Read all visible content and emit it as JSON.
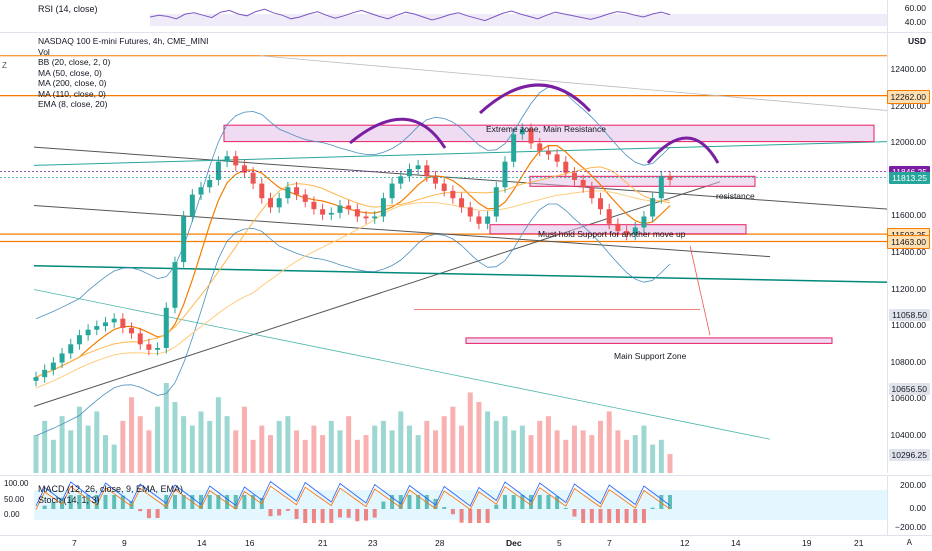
{
  "rsi": {
    "label": "RSI (14, close)",
    "levels": [
      "60.00",
      "40.00"
    ],
    "values": [
      55,
      58,
      56,
      52,
      60,
      62,
      58,
      54,
      63,
      66,
      60,
      57,
      64,
      68,
      62,
      58,
      52,
      55,
      60,
      64,
      58,
      53,
      57,
      62,
      66,
      61,
      56,
      52,
      58,
      63,
      60,
      55,
      50,
      54,
      59,
      62,
      57,
      53,
      49,
      55,
      61,
      65,
      60,
      56,
      52,
      58,
      63,
      60,
      57,
      54,
      51,
      55,
      60,
      64,
      62,
      58,
      55,
      60,
      63,
      59
    ]
  },
  "main": {
    "title": "NASDAQ 100 E-mini Futures, 4h, CME_MINI",
    "indicators": [
      "Vol",
      "BB (20, close, 2, 0)",
      "MA (50, close, 0)",
      "MA (200, close, 0)",
      "MA (110, close, 0)",
      "EMA (8, close, 20)"
    ],
    "currency": "USD",
    "price_ticks": [
      "12400.00",
      "12200.00",
      "12000.00",
      "11600.00",
      "11400.00",
      "11200.00",
      "11000.00",
      "10800.00",
      "10600.00",
      "10400.00"
    ],
    "badges": [
      {
        "text": "12262.00",
        "price": 12262,
        "color": "#ffe0b2",
        "border": "#f57c00"
      },
      {
        "text": "11846.25",
        "price": 11846.25,
        "color": "#7b1fa2",
        "text_color": "#ffffff"
      },
      {
        "text": "11813.25",
        "price": 11813.25,
        "color": "#26a69a",
        "text_color": "#ffffff"
      },
      {
        "text": "11503.25",
        "price": 11503.25,
        "color": "#ffe0b2",
        "border": "#f57c00"
      },
      {
        "text": "11463.00",
        "price": 11463,
        "color": "#ffe0b2",
        "border": "#f57c00"
      },
      {
        "text": "11058.50",
        "price": 11058.5,
        "color": "#e0e3eb"
      },
      {
        "text": "10656.50",
        "price": 10656.5,
        "color": "#e0e3eb"
      },
      {
        "text": "10296.25",
        "price": 10296.25,
        "color": "#e0e3eb"
      }
    ],
    "annotations": {
      "resistance_zone": "Extreme zone, Main Resistance",
      "support_hold": "Must hold Support for another move up",
      "support_zone": "Main Support Zone",
      "resistance": "resistance"
    }
  },
  "macd": {
    "label_macd": "MACD (12, 26, close, 9, EMA, EMA)",
    "label_stoch": "Stoch (14, 1, 3)",
    "left_ticks": [
      "100.00",
      "50.00",
      "0.00"
    ],
    "right_ticks": [
      "200.00",
      "0.00",
      "−200.00"
    ]
  },
  "time_axis": {
    "labels": [
      "7",
      "9",
      "14",
      "16",
      "21",
      "23",
      "28",
      "Dec",
      "5",
      "7",
      "12",
      "14",
      "19",
      "21"
    ]
  },
  "chart_data": {
    "type": "candlestick",
    "title": "NASDAQ 100 E-mini Futures, 4h, CME_MINI",
    "ylabel": "USD",
    "ylim": [
      10250,
      12550
    ],
    "x_labels": [
      "7",
      "9",
      "14",
      "16",
      "21",
      "23",
      "28",
      "Dec",
      "5",
      "7",
      "12",
      "14",
      "19",
      "21"
    ],
    "close": [
      10720,
      10760,
      10800,
      10850,
      10900,
      10950,
      10980,
      11000,
      11020,
      11040,
      10990,
      10960,
      10900,
      10870,
      10880,
      11100,
      11350,
      11600,
      11720,
      11760,
      11800,
      11900,
      11930,
      11880,
      11840,
      11780,
      11700,
      11650,
      11700,
      11760,
      11720,
      11680,
      11640,
      11610,
      11620,
      11660,
      11640,
      11600,
      11590,
      11600,
      11700,
      11780,
      11820,
      11860,
      11880,
      11820,
      11780,
      11740,
      11700,
      11650,
      11600,
      11560,
      11600,
      11760,
      11900,
      12050,
      12080,
      12000,
      11960,
      11940,
      11900,
      11840,
      11800,
      11760,
      11700,
      11640,
      11560,
      11520,
      11500,
      11540,
      11600,
      11700,
      11820,
      11800
    ],
    "volume": [
      40,
      55,
      35,
      60,
      45,
      70,
      50,
      65,
      40,
      30,
      55,
      80,
      60,
      45,
      70,
      95,
      75,
      60,
      50,
      65,
      55,
      80,
      60,
      45,
      70,
      35,
      50,
      40,
      55,
      60,
      45,
      35,
      50,
      40,
      55,
      45,
      60,
      35,
      40,
      50,
      55,
      45,
      65,
      50,
      40,
      55,
      45,
      60,
      70,
      50,
      85,
      75,
      65,
      55,
      60,
      45,
      50,
      40,
      55,
      60,
      45,
      35,
      50,
      45,
      40,
      55,
      65,
      45,
      35,
      40,
      50,
      30,
      35,
      20
    ],
    "levels": {
      "orange": [
        12262,
        11503.25,
        11463
      ],
      "purple_last": 11846.25,
      "teal_last": 11813.25
    },
    "zones": [
      {
        "label": "Extreme zone, Main Resistance",
        "low": 12010,
        "high": 12100
      },
      {
        "label": "Must hold Support for another move up",
        "low": 11505,
        "high": 11555
      },
      {
        "label": "Main Support Zone",
        "low": 10905,
        "high": 10935
      }
    ]
  }
}
